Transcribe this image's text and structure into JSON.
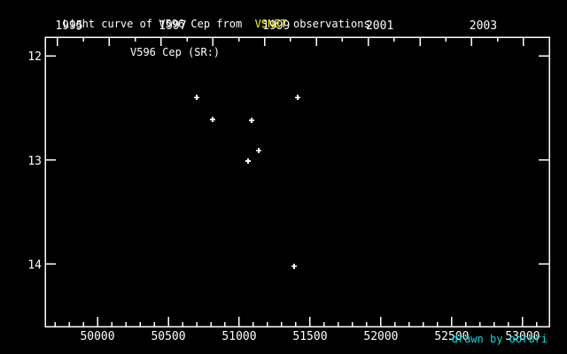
{
  "header": {
    "title_prefix": "Light curve of V596 Cep from  ",
    "title_highlight": "VSNET",
    "title_suffix": " observations"
  },
  "footer": {
    "credit": "drawn by ooruri"
  },
  "colors": {
    "background": "#000000",
    "foreground": "#ffffff",
    "highlight": "#ffff00",
    "credit": "#00dce1",
    "marker": "#ffffff"
  },
  "chart_data": {
    "type": "scatter",
    "title": "Light curve of V596 Cep from VSNET observations",
    "series_label": "V596 Cep (SR:)",
    "marker_style": "plus",
    "grid": false,
    "x_axis": {
      "range": [
        49631,
        53188
      ],
      "major_ticks": [
        50000,
        50500,
        51000,
        51500,
        52000,
        52500,
        53000
      ],
      "tick_labels": [
        "50000",
        "50500",
        "51000",
        "51500",
        "52000",
        "52500",
        "53000"
      ],
      "minor_tick_step": 100
    },
    "top_axis": {
      "year_ticks": [
        {
          "year": "1995",
          "jd": 49718.5,
          "labeled": true
        },
        {
          "year": "1996",
          "jd": 50083.5,
          "labeled": false
        },
        {
          "year": "1997",
          "jd": 50449.5,
          "labeled": true
        },
        {
          "year": "1998",
          "jd": 50814.5,
          "labeled": false
        },
        {
          "year": "1999",
          "jd": 51179.5,
          "labeled": true
        },
        {
          "year": "2000",
          "jd": 51544.5,
          "labeled": false
        },
        {
          "year": "2001",
          "jd": 51910.5,
          "labeled": true
        },
        {
          "year": "2002",
          "jd": 52275.5,
          "labeled": false
        },
        {
          "year": "2003",
          "jd": 52640.5,
          "labeled": true
        },
        {
          "year": "2004",
          "jd": 53005.5,
          "labeled": false
        }
      ],
      "half_year_offset_days": 182.5
    },
    "y_axis": {
      "range": [
        11.82,
        14.6
      ],
      "inverted": true,
      "major_ticks": [
        12,
        13,
        14
      ],
      "tick_labels": [
        "12",
        "13",
        "14"
      ]
    },
    "points": [
      {
        "jd": 50700,
        "mag": 12.4
      },
      {
        "jd": 50813,
        "mag": 12.61
      },
      {
        "jd": 51063,
        "mag": 13.01
      },
      {
        "jd": 51088,
        "mag": 12.62
      },
      {
        "jd": 51138,
        "mag": 12.91
      },
      {
        "jd": 51388,
        "mag": 14.02
      },
      {
        "jd": 51413,
        "mag": 12.4
      }
    ]
  }
}
